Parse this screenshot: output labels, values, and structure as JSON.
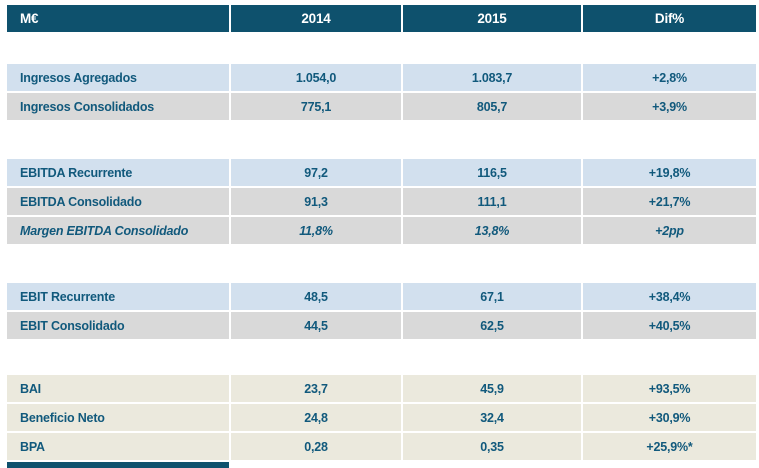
{
  "chart_data": {
    "type": "table",
    "unit_label": "M€",
    "columns": [
      "2014",
      "2015",
      "Dif%"
    ],
    "groups": [
      {
        "rows": [
          {
            "label": "Ingresos Agregados",
            "values": [
              "1.054,0",
              "1.083,7",
              "+2,8%"
            ],
            "bg": "blue",
            "italic": false
          },
          {
            "label": "Ingresos Consolidados",
            "values": [
              "775,1",
              "805,7",
              "+3,9%"
            ],
            "bg": "gray",
            "italic": false
          }
        ]
      },
      {
        "rows": [
          {
            "label": "EBITDA Recurrente",
            "values": [
              "97,2",
              "116,5",
              "+19,8%"
            ],
            "bg": "blue",
            "italic": false
          },
          {
            "label": "EBITDA Consolidado",
            "values": [
              "91,3",
              "111,1",
              "+21,7%"
            ],
            "bg": "gray",
            "italic": false
          },
          {
            "label": "Margen EBITDA Consolidado",
            "values": [
              "11,8%",
              "13,8%",
              "+2pp"
            ],
            "bg": "gray",
            "italic": true
          }
        ]
      },
      {
        "rows": [
          {
            "label": "EBIT Recurrente",
            "values": [
              "48,5",
              "67,1",
              "+38,4%"
            ],
            "bg": "blue",
            "italic": false
          },
          {
            "label": "EBIT Consolidado",
            "values": [
              "44,5",
              "62,5",
              "+40,5%"
            ],
            "bg": "gray",
            "italic": false
          }
        ]
      },
      {
        "rows": [
          {
            "label": "BAI",
            "values": [
              "23,7",
              "45,9",
              "+93,5%"
            ],
            "bg": "beige",
            "italic": false
          },
          {
            "label": "Beneficio Neto",
            "values": [
              "24,8",
              "32,4",
              "+30,9%"
            ],
            "bg": "beige",
            "italic": false
          },
          {
            "label": "BPA",
            "values": [
              "0,28",
              "0,35",
              "+25,9%*"
            ],
            "bg": "beige",
            "italic": false
          }
        ]
      }
    ]
  },
  "colors": {
    "header_bg": "#0e516d",
    "row_blue": "#d2e0ee",
    "row_gray": "#d9d9d9",
    "row_beige": "#ebe9dd",
    "text_teal": "#11597c"
  }
}
